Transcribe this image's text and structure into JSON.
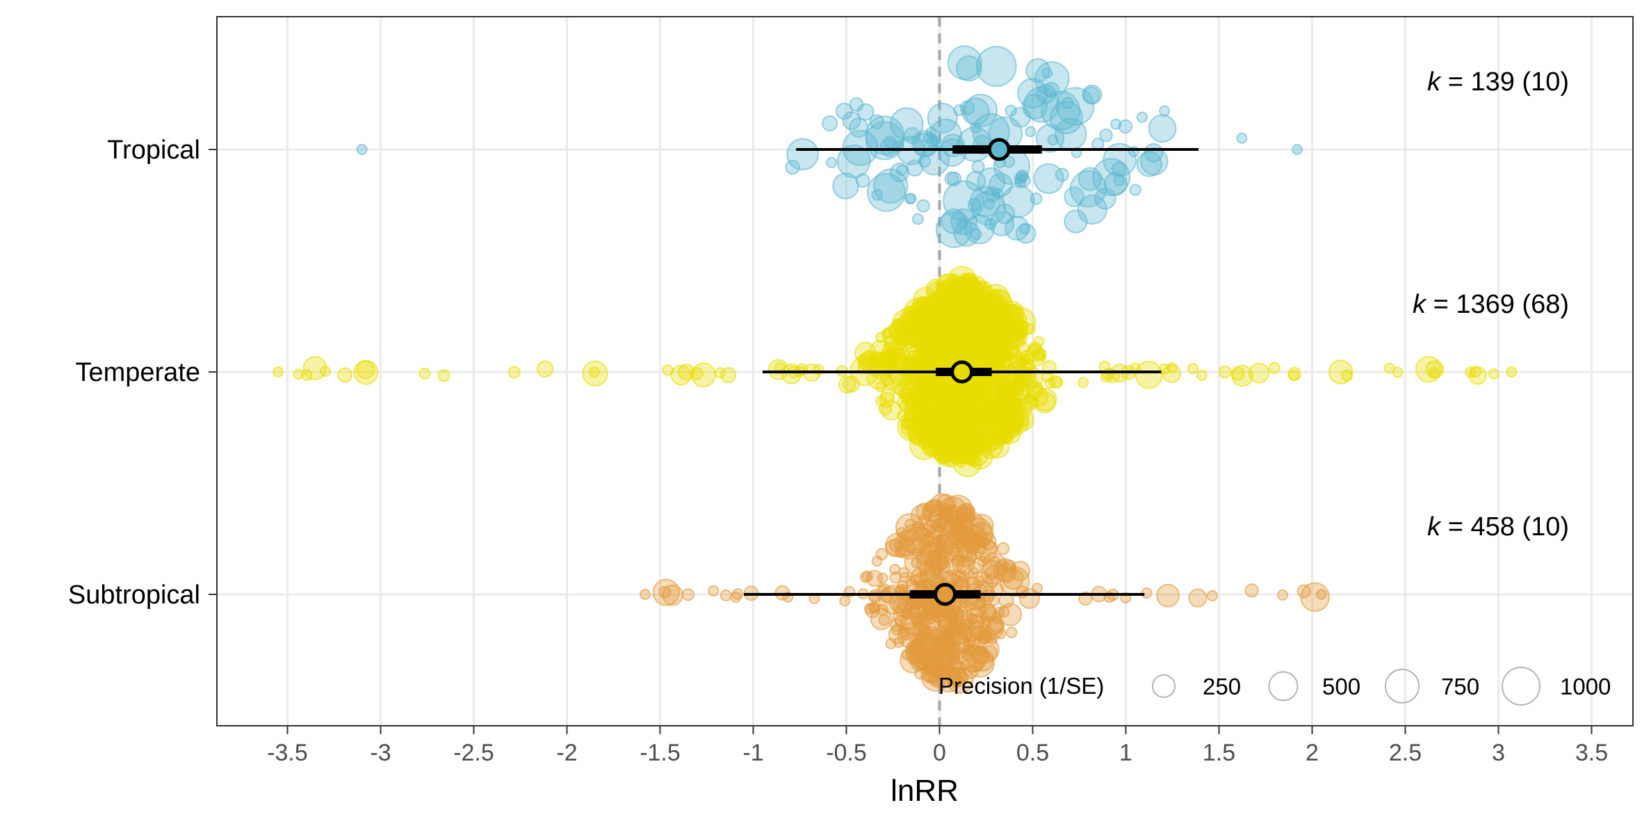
{
  "chart_data": {
    "type": "scatter",
    "title": "",
    "xlabel": "lnRR",
    "ylabel": "",
    "xlim": [
      -3.85,
      3.65
    ],
    "xticks": [
      -3.5,
      -3,
      -2.5,
      -2,
      -1.5,
      -1,
      -0.5,
      0,
      0.5,
      1,
      1.5,
      2,
      2.5,
      3,
      3.5
    ],
    "xtick_labels": [
      "-3.5",
      "-3",
      "-2.5",
      "-2",
      "-1.5",
      "-1",
      "-0.5",
      "0",
      "0.5",
      "1",
      "1.5",
      "2",
      "2.5",
      "3",
      "3.5"
    ],
    "reference_line": 0,
    "grid": true,
    "categories": [
      "Tropical",
      "Temperate",
      "Subtropical"
    ],
    "series": [
      {
        "name": "Tropical",
        "color": "#5fb8d0",
        "estimate": 0.32,
        "ci": [
          0.07,
          0.55
        ],
        "pi": [
          -0.77,
          1.39
        ],
        "k_prefix": "k",
        "k_text": "= 139 (10)",
        "n": 139,
        "range": [
          -3.1,
          1.92
        ],
        "spread": 0.55
      },
      {
        "name": "Temperate",
        "color": "#e8dd00",
        "estimate": 0.12,
        "ci": [
          -0.02,
          0.28
        ],
        "pi": [
          -0.95,
          1.19
        ],
        "k_prefix": "k",
        "k_text": "= 1369 (68)",
        "n": 1369,
        "range": [
          -3.55,
          3.07
        ],
        "spread": 0.25
      },
      {
        "name": "Subtropical",
        "color": "#e29a3c",
        "estimate": 0.03,
        "ci": [
          -0.16,
          0.22
        ],
        "pi": [
          -1.05,
          1.1
        ],
        "k_prefix": "k",
        "k_text": "= 458 (10)",
        "n": 458,
        "range": [
          -1.58,
          2.05
        ],
        "spread": 0.22
      }
    ],
    "legend": {
      "title": "Precision (1/SE)",
      "placement": "bottom-right",
      "sizes": [
        250,
        500,
        750,
        1000
      ],
      "labels": [
        "250",
        "500",
        "750",
        "1000"
      ]
    }
  }
}
